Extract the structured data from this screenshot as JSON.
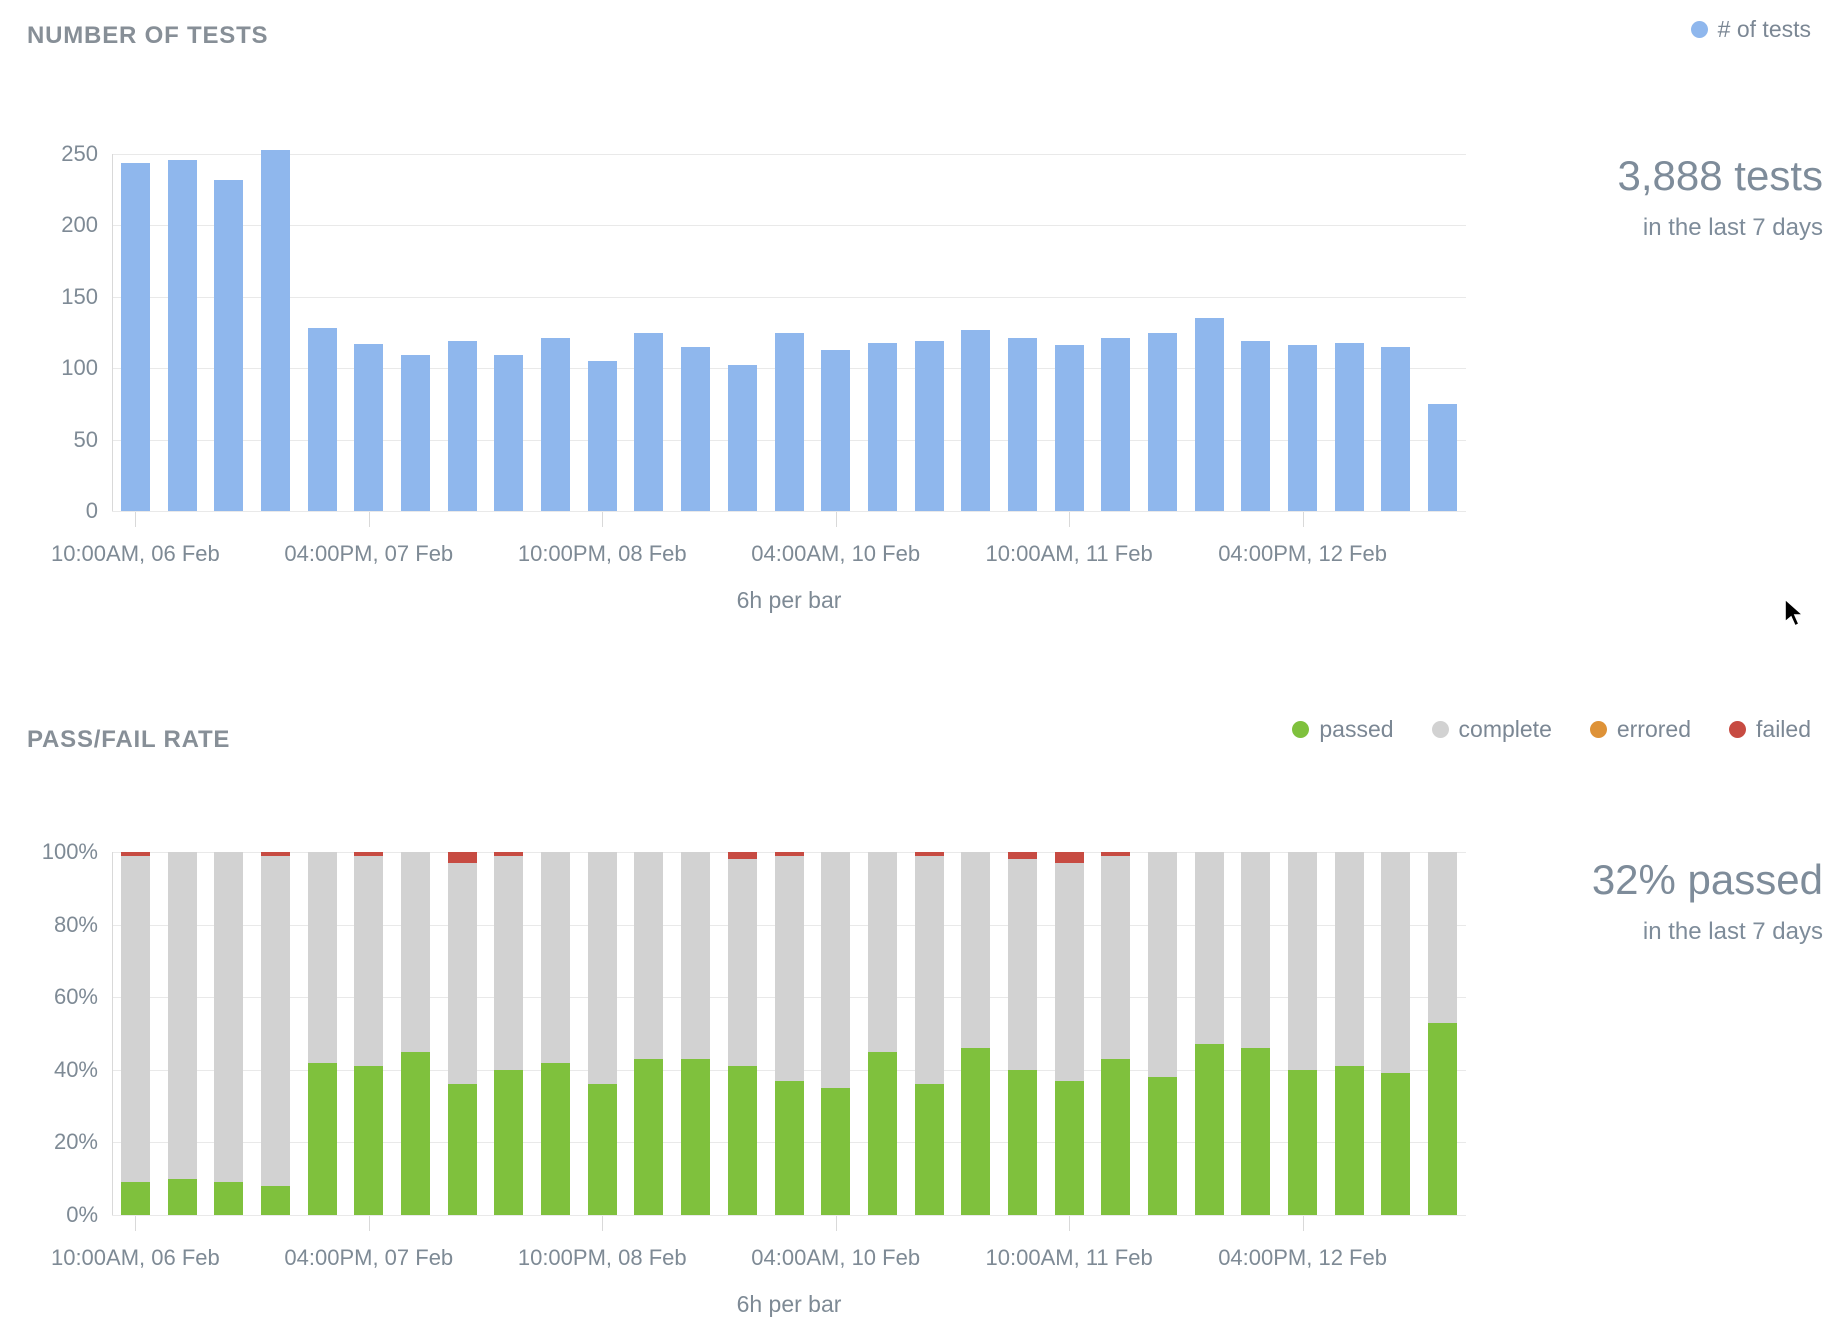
{
  "colors": {
    "tests_blue": "#8fb7ed",
    "passed_green": "#7fc13d",
    "complete_gray": "#d2d2d2",
    "errored_orange": "#de9237",
    "failed_red": "#c74b42",
    "grid": "#e9e9e9",
    "text_title": "#878f97",
    "text_label": "#7e8a95",
    "text_summary": "#7e8c9a"
  },
  "chart_data": [
    {
      "type": "bar",
      "title": "NUMBER OF TESTS",
      "xlabel": "6h per bar",
      "ylabel": "",
      "ylim": [
        0,
        250
      ],
      "y_ticks": [
        "250",
        "200",
        "150",
        "100",
        "50",
        "0"
      ],
      "x_tick_labels": [
        "10:00AM, 06 Feb",
        "04:00PM, 07 Feb",
        "10:00PM, 08 Feb",
        "04:00AM, 10 Feb",
        "10:00AM, 11 Feb",
        "04:00PM, 12 Feb"
      ],
      "x_tick_indices": [
        0,
        5,
        10,
        15,
        20,
        25
      ],
      "grid": true,
      "legend_position": "top-right",
      "legend": [
        {
          "label": "# of tests",
          "color_key": "tests_blue"
        }
      ],
      "bar_color_key": "tests_blue",
      "values": [
        244,
        246,
        232,
        253,
        128,
        117,
        109,
        119,
        109,
        121,
        105,
        125,
        115,
        102,
        125,
        113,
        118,
        119,
        127,
        121,
        116,
        121,
        125,
        135,
        119,
        116,
        118,
        115,
        75
      ],
      "summary": {
        "value": "3,888 tests",
        "subtitle": "in the last 7 days"
      }
    },
    {
      "type": "bar",
      "stacked": true,
      "title": "PASS/FAIL RATE",
      "xlabel": "6h per bar",
      "ylabel": "",
      "ylim": [
        0,
        100
      ],
      "y_ticks": [
        "100%",
        "80%",
        "60%",
        "40%",
        "20%",
        "0%"
      ],
      "x_tick_labels": [
        "10:00AM, 06 Feb",
        "04:00PM, 07 Feb",
        "10:00PM, 08 Feb",
        "04:00AM, 10 Feb",
        "10:00AM, 11 Feb",
        "04:00PM, 12 Feb"
      ],
      "x_tick_indices": [
        0,
        5,
        10,
        15,
        20,
        25
      ],
      "grid": true,
      "legend_position": "top-right",
      "legend": [
        {
          "label": "passed",
          "color_key": "passed_green"
        },
        {
          "label": "complete",
          "color_key": "complete_gray"
        },
        {
          "label": "errored",
          "color_key": "errored_orange"
        },
        {
          "label": "failed",
          "color_key": "failed_red"
        }
      ],
      "series": [
        {
          "name": "passed",
          "color_key": "passed_green",
          "values": [
            9,
            10,
            9,
            8,
            42,
            41,
            45,
            36,
            40,
            42,
            36,
            43,
            43,
            41,
            37,
            35,
            45,
            36,
            46,
            40,
            37,
            43,
            38,
            47,
            46,
            40,
            41,
            39,
            53
          ]
        },
        {
          "name": "complete",
          "color_key": "complete_gray",
          "values": [
            90,
            90,
            91,
            91,
            58,
            58,
            55,
            61,
            59,
            58,
            64,
            57,
            57,
            57,
            62,
            65,
            55,
            63,
            54,
            58,
            60,
            56,
            62,
            53,
            54,
            60,
            59,
            61,
            47
          ]
        },
        {
          "name": "errored",
          "color_key": "errored_orange",
          "values": [
            0,
            0,
            0,
            0,
            0,
            0,
            0,
            0,
            0,
            0,
            0,
            0,
            0,
            0,
            0,
            0,
            0,
            0,
            0,
            0,
            0,
            0,
            0,
            0,
            0,
            0,
            0,
            0,
            0
          ]
        },
        {
          "name": "failed",
          "color_key": "failed_red",
          "values": [
            1,
            0,
            0,
            1,
            0,
            1,
            0,
            3,
            1,
            0,
            0,
            0,
            0,
            2,
            1,
            0,
            0,
            1,
            0,
            2,
            3,
            1,
            0,
            0,
            0,
            0,
            0,
            0,
            0
          ]
        }
      ],
      "summary": {
        "value": "32% passed",
        "subtitle": "in the last 7 days"
      }
    }
  ]
}
